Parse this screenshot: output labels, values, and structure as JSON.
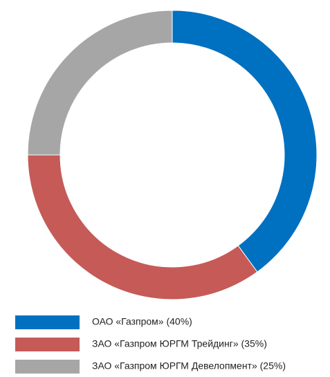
{
  "chart_data": {
    "type": "donut",
    "categories": [
      "ОАО «Газпром» (40%)",
      "ЗАО «Газпром ЮРГМ Трейдинг» (35%)",
      "ЗАО «Газпром ЮРГМ Девелопмент» (25%)"
    ],
    "values": [
      40,
      35,
      25
    ],
    "colors": [
      "#0070c0",
      "#c55a57",
      "#a6a6a6"
    ]
  }
}
